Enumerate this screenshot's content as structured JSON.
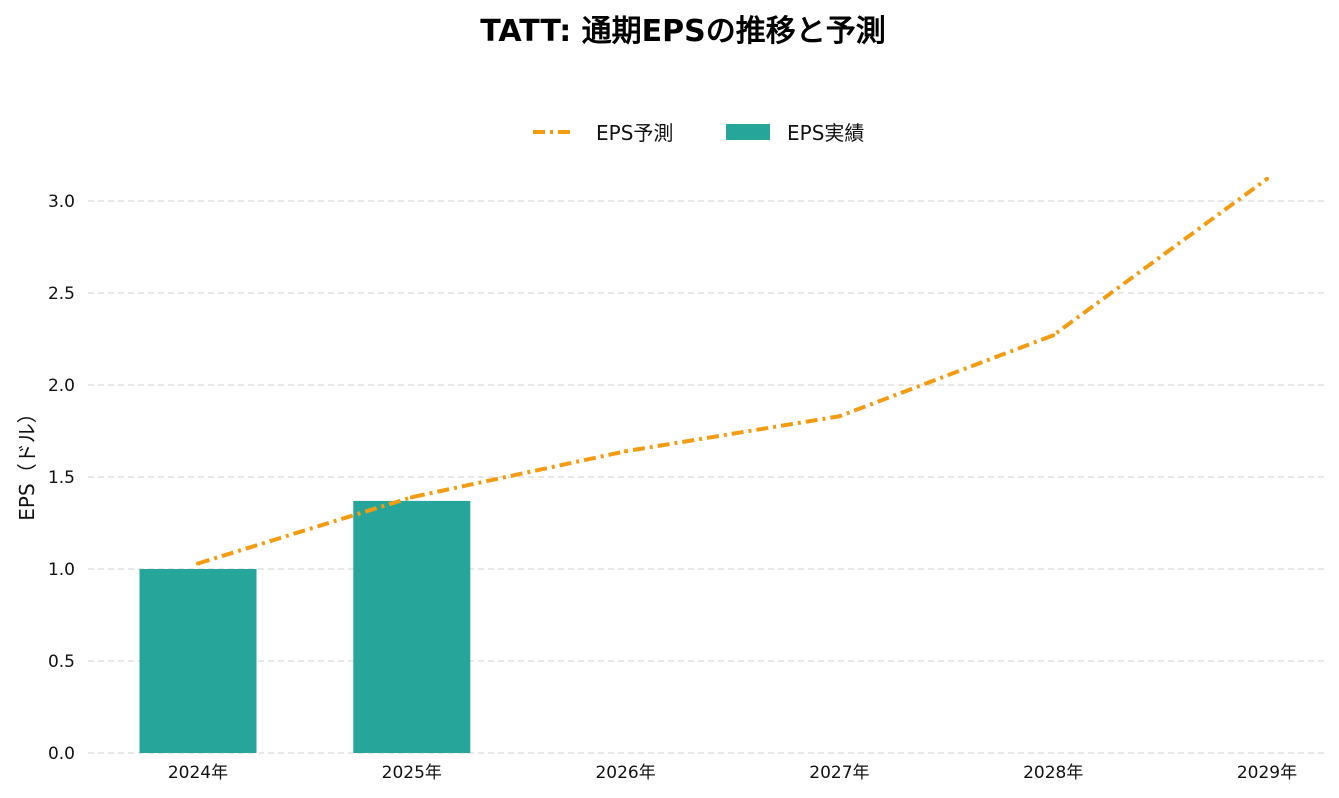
{
  "chart_data": {
    "type": "bar",
    "title": "TATT: 通期EPSの推移と予測",
    "xlabel": "",
    "ylabel": "EPS（ドル）",
    "categories": [
      "2024年",
      "2025年",
      "2026年",
      "2027年",
      "2028年",
      "2029年"
    ],
    "ylim": [
      0,
      3.2
    ],
    "yticks": [
      "0.0",
      "0.5",
      "1.0",
      "1.5",
      "2.0",
      "2.5",
      "3.0"
    ],
    "grid": true,
    "legend_position": "top-center",
    "series": [
      {
        "name": "EPS予測",
        "type": "line",
        "style": "dash-dot",
        "color": "#F39C12",
        "values": [
          1.03,
          1.39,
          1.64,
          1.83,
          2.27,
          3.12
        ]
      },
      {
        "name": "EPS実績",
        "type": "bar",
        "color": "#26A69A",
        "values": [
          1.0,
          1.37,
          null,
          null,
          null,
          null
        ]
      }
    ]
  }
}
